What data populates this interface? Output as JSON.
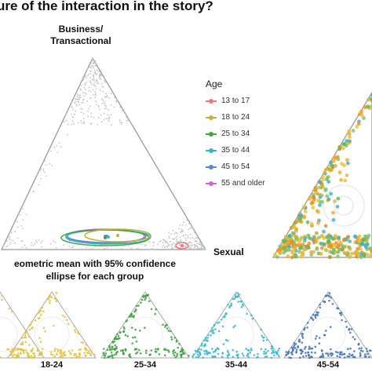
{
  "title": "ure of the interaction in the story?",
  "vertex_top": "Business/\nTransactional",
  "vertex_right": "Sexual",
  "caption": "eometric mean with 95% confidence\nellipse for each group",
  "legend_title": "Age",
  "colors": {
    "13 to 17": "#f07878",
    "18 to 24": "#c8b030",
    "25 to 34": "#3aa83a",
    "35 to 44": "#30b8c8",
    "45 to 54": "#5a88d8",
    "55 and older": "#d068d0",
    "points": "#bdbdbd",
    "axis": "#888888"
  },
  "chart_data": [
    {
      "type": "scatter",
      "name": "main-ternary",
      "legend": [
        "13 to 17",
        "18 to 24",
        "25 to 34",
        "35 to 44",
        "45 to 54",
        "55 and older"
      ],
      "vertices": [
        "Business/\nTransactional",
        "Sexual"
      ],
      "series": [
        {
          "name": "13 to 17",
          "mean": [
            0.04,
            0.92
          ]
        },
        {
          "name": "18 to 24",
          "mean": [
            0.05,
            0.6
          ]
        },
        {
          "name": "25 to 34",
          "mean": [
            0.05,
            0.58
          ]
        },
        {
          "name": "35 to 44",
          "mean": [
            0.05,
            0.62
          ]
        },
        {
          "name": "45 to 54",
          "mean": [
            0.05,
            0.64
          ]
        },
        {
          "name": "55 and older",
          "mean": [
            0.05,
            0.6
          ]
        }
      ],
      "grid": false
    },
    {
      "type": "scatter",
      "name": "small-multiples",
      "panels": [
        "18-24",
        "25-34",
        "35-44",
        "45-54"
      ]
    }
  ],
  "small_labels": [
    "18-24",
    "25-34",
    "35-44",
    "45-54"
  ]
}
